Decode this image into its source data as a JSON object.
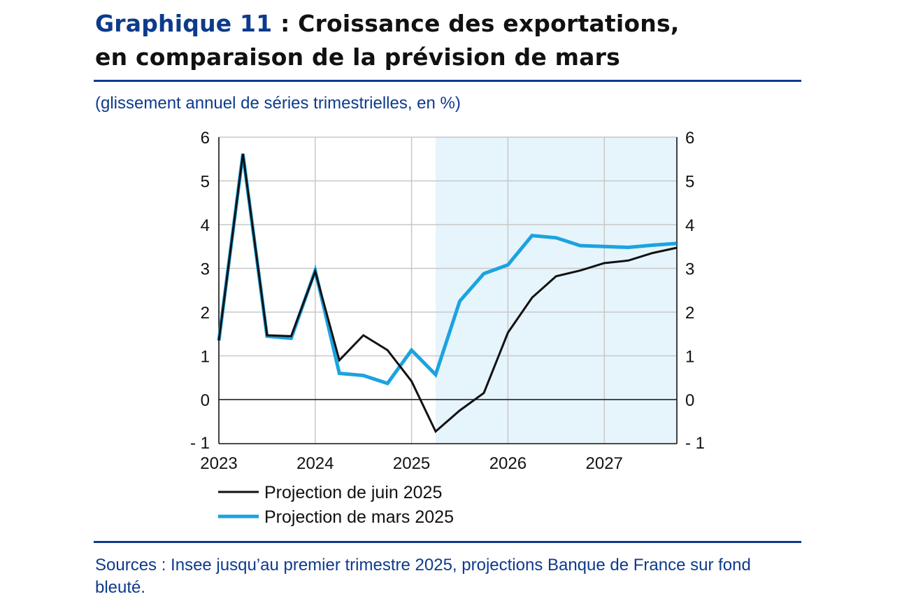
{
  "header": {
    "title_number": "Graphique 11",
    "title_rest_line1": " : Croissance des exportations,",
    "title_line2": "en comparaison de la prévision de mars"
  },
  "subtitle": "(glissement annuel de séries trimestrielles, en %)",
  "sources": "Sources : Insee jusqu’au premier trimestre 2025, projections Banque de France sur fond bleuté.",
  "colors": {
    "juin": "#111111",
    "mars": "#1ba3e0",
    "projection_band": "#e6f4fb",
    "grid": "#c8c8c8",
    "accent": "#0d3b8c"
  },
  "chart_data": {
    "type": "line",
    "x": [
      "2023T1",
      "2023T2",
      "2023T3",
      "2023T4",
      "2024T1",
      "2024T2",
      "2024T3",
      "2024T4",
      "2025T1",
      "2025T2",
      "2025T3",
      "2025T4",
      "2026T1",
      "2026T2",
      "2026T3",
      "2026T4",
      "2027T1",
      "2027T2",
      "2027T3",
      "2027T4"
    ],
    "x_ticks": [
      "2023",
      "2024",
      "2025",
      "2026",
      "2027"
    ],
    "y_ticks": [
      "6",
      "5",
      "4",
      "3",
      "2",
      "1",
      "0",
      "- 1"
    ],
    "ylim": [
      -1,
      6
    ],
    "grid": true,
    "legend_position": "bottom-left",
    "projection_band": {
      "from": "2025T2",
      "to": "2027T4"
    },
    "series": [
      {
        "name": "Projection de juin 2025",
        "values": [
          1.35,
          5.62,
          1.47,
          1.45,
          2.93,
          0.9,
          1.47,
          1.13,
          0.42,
          -0.73,
          -0.25,
          0.15,
          1.53,
          2.33,
          2.82,
          2.95,
          3.12,
          3.18,
          3.35,
          3.47
        ]
      },
      {
        "name": "Projection de mars 2025",
        "values": [
          1.35,
          5.62,
          1.45,
          1.4,
          2.95,
          0.6,
          0.55,
          0.37,
          1.13,
          0.57,
          2.25,
          2.88,
          3.08,
          3.75,
          3.7,
          3.52,
          3.5,
          3.48,
          3.53,
          3.57
        ]
      }
    ]
  }
}
